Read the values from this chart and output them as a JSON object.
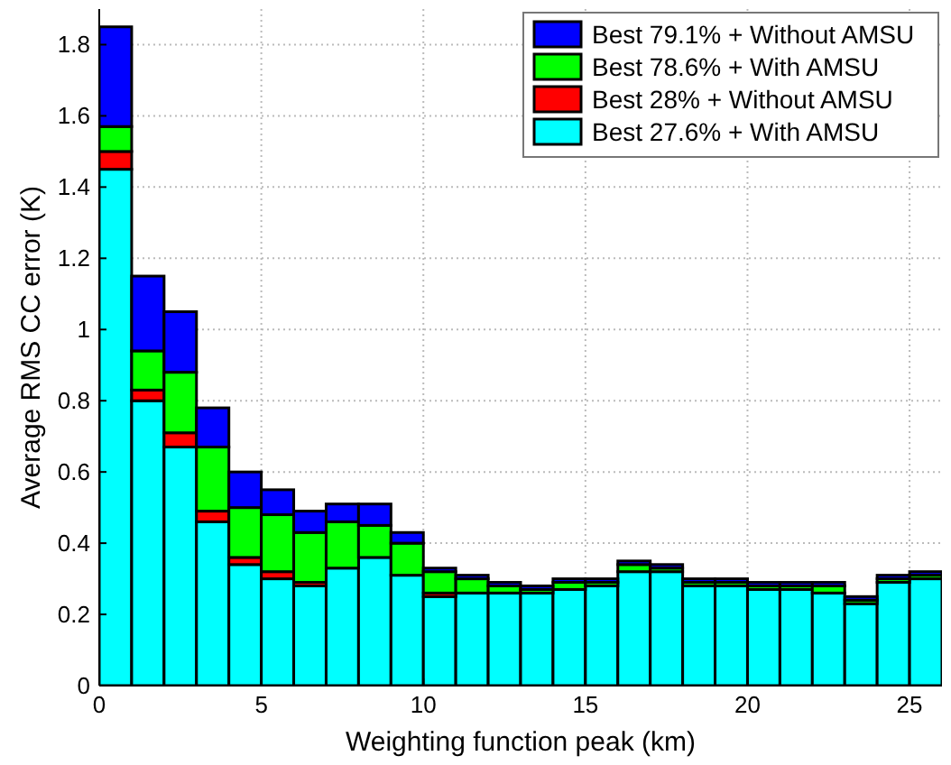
{
  "chart_data": {
    "type": "bar",
    "xlabel": "Weighting function peak (km)",
    "ylabel": "Average RMS CC error (K)",
    "x": [
      0.5,
      1.5,
      2.5,
      3.5,
      4.5,
      5.5,
      6.5,
      7.5,
      8.5,
      9.5,
      10.5,
      11.5,
      12.5,
      13.5,
      14.5,
      15.5,
      16.5,
      17.5,
      18.5,
      19.5,
      20.5,
      21.5,
      22.5,
      23.5,
      24.5,
      25.5
    ],
    "stacked": true,
    "series": [
      {
        "name": "Best 27.6% + With AMSU",
        "color": "#00ffff",
        "values": [
          1.45,
          0.8,
          0.67,
          0.46,
          0.34,
          0.3,
          0.28,
          0.33,
          0.36,
          0.31,
          0.25,
          0.26,
          0.26,
          0.26,
          0.27,
          0.28,
          0.32,
          0.32,
          0.28,
          0.28,
          0.27,
          0.27,
          0.26,
          0.23,
          0.29,
          0.3
        ]
      },
      {
        "name": "Best 28% + Without AMSU",
        "color": "#ff0000",
        "values": [
          0.05,
          0.03,
          0.04,
          0.03,
          0.02,
          0.02,
          0.01,
          0,
          0,
          0,
          0.01,
          0,
          0,
          0,
          0,
          0,
          0,
          0,
          0,
          0,
          0,
          0,
          0,
          0,
          0,
          0
        ]
      },
      {
        "name": "Best 78.6% + With AMSU",
        "color": "#00ff00",
        "values": [
          0.07,
          0.11,
          0.17,
          0.18,
          0.14,
          0.16,
          0.14,
          0.13,
          0.09,
          0.09,
          0.06,
          0.04,
          0.02,
          0.01,
          0.02,
          0.01,
          0.02,
          0.01,
          0.01,
          0.01,
          0.01,
          0.01,
          0.02,
          0.01,
          0.01,
          0.01
        ]
      },
      {
        "name": "Best 79.1% + Without AMSU",
        "color": "#0000ff",
        "values": [
          0.28,
          0.21,
          0.17,
          0.11,
          0.1,
          0.07,
          0.06,
          0.05,
          0.06,
          0.03,
          0.01,
          0.01,
          0.01,
          0.01,
          0.01,
          0.01,
          0.01,
          0.01,
          0.01,
          0.01,
          0.01,
          0.01,
          0.01,
          0.01,
          0.01,
          0.01
        ]
      }
    ],
    "xlim": [
      0,
      26
    ],
    "xticks": [
      0,
      5,
      10,
      15,
      20,
      25
    ],
    "ylim": [
      0,
      1.9
    ],
    "yticks": [
      0,
      0.2,
      0.4,
      0.6,
      0.8,
      1,
      1.2,
      1.4,
      1.6,
      1.8
    ],
    "grid": true,
    "legend": "top right"
  }
}
